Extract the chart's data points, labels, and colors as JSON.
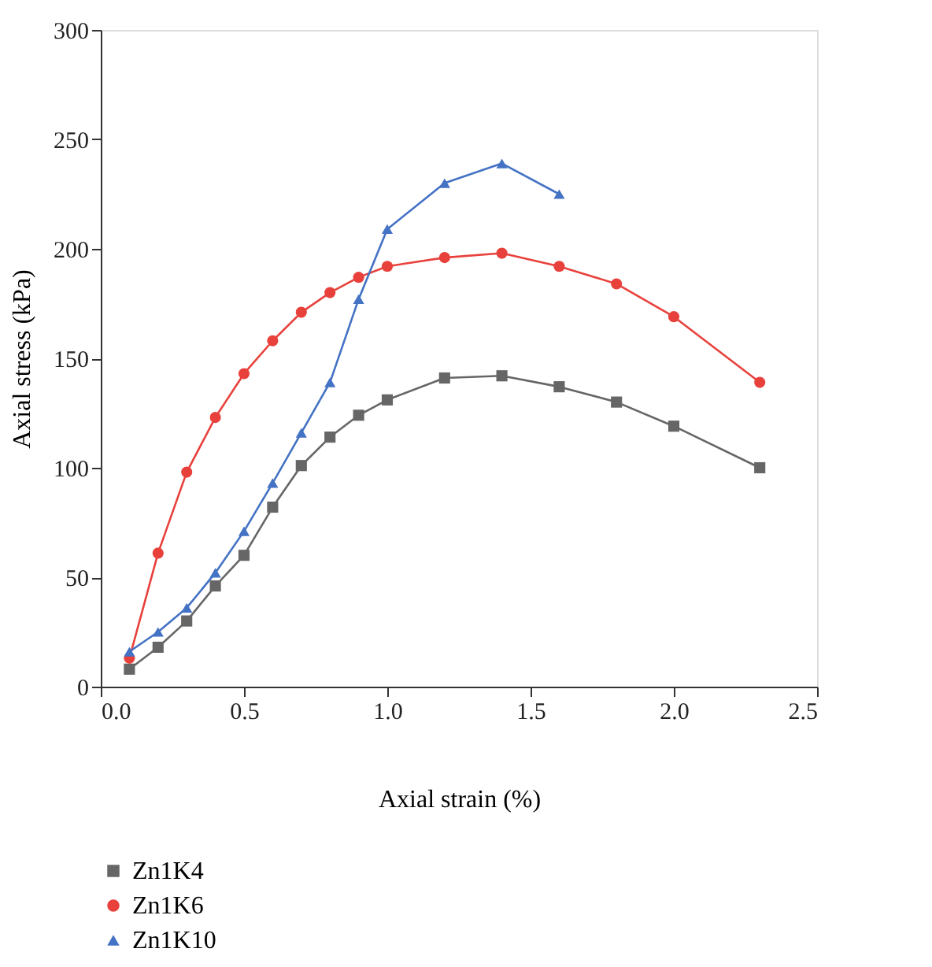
{
  "chart_data": {
    "type": "line",
    "xlabel": "Axial strain (%)",
    "ylabel": "Axial stress (kPa)",
    "xlim": [
      0,
      2.5
    ],
    "xticks": [
      {
        "value": 0,
        "label": "0.0"
      },
      0.5,
      {
        "value": 1,
        "label": "1.0"
      },
      1.5,
      {
        "value": 2,
        "label": "2.0"
      },
      2.5
    ],
    "ylim": [
      0,
      300
    ],
    "yticks": [
      0,
      50,
      100,
      150,
      200,
      250,
      300
    ],
    "grid": false,
    "legend": "bottom",
    "line_style": "solid",
    "series": [
      {
        "name": "Zn1K4",
        "color": "#666666",
        "marker": "square",
        "x": [
          0.1,
          0.2,
          0.3,
          0.4,
          0.5,
          0.6,
          0.7,
          0.8,
          0.9,
          1.0,
          1.2,
          1.4,
          1.6,
          1.8,
          2.0,
          2.3
        ],
        "values": [
          8,
          18,
          30,
          46,
          60,
          82,
          101,
          114,
          124,
          131,
          141,
          142,
          137,
          130,
          119,
          100
        ]
      },
      {
        "name": "Zn1K6",
        "color": "#e8413c",
        "marker": "circle",
        "x": [
          0.1,
          0.2,
          0.3,
          0.4,
          0.5,
          0.6,
          0.7,
          0.8,
          0.9,
          1.0,
          1.2,
          1.4,
          1.6,
          1.8,
          2.0,
          2.3
        ],
        "values": [
          13,
          61,
          98,
          123,
          143,
          158,
          171,
          180,
          187,
          192,
          196,
          198,
          192,
          184,
          169,
          139
        ]
      },
      {
        "name": "Zn1K10",
        "color": "#4472c4",
        "marker": "triangle",
        "x": [
          0.1,
          0.2,
          0.3,
          0.4,
          0.5,
          0.6,
          0.7,
          0.8,
          0.9,
          1.0,
          1.2,
          1.4,
          1.6
        ],
        "values": [
          16,
          25,
          36,
          52,
          71,
          93,
          116,
          139,
          177,
          209,
          230,
          239,
          225
        ]
      }
    ]
  }
}
